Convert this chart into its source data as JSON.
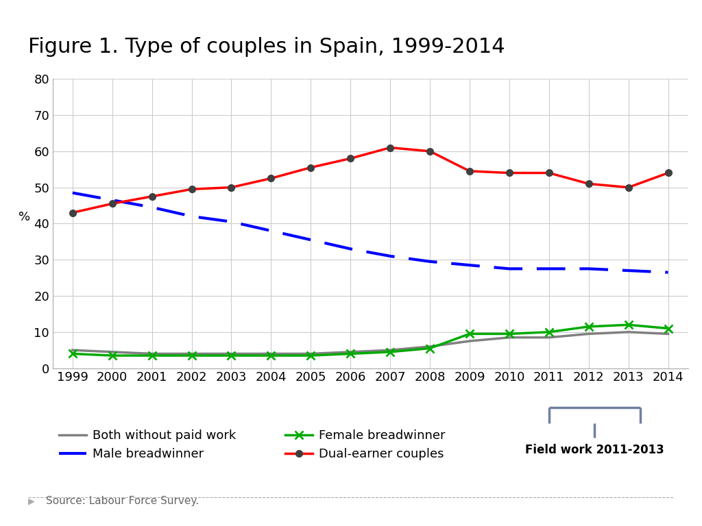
{
  "title": "Figure 1. Type of couples in Spain, 1999-2014",
  "years": [
    1999,
    2000,
    2001,
    2002,
    2003,
    2004,
    2005,
    2006,
    2007,
    2008,
    2009,
    2010,
    2011,
    2012,
    2013,
    2014
  ],
  "dual_earner": [
    43,
    45.5,
    47.5,
    49.5,
    50,
    52.5,
    55.5,
    58,
    61,
    60,
    54.5,
    54,
    54,
    51,
    50,
    54
  ],
  "male_breadwinner": [
    48.5,
    46.5,
    44.5,
    42,
    40.5,
    38,
    35.5,
    33,
    31,
    29.5,
    28.5,
    27.5,
    27.5,
    27.5,
    27,
    26.5
  ],
  "both_without": [
    5,
    4.5,
    4,
    4,
    4,
    4,
    4,
    4.5,
    5,
    6,
    7.5,
    8.5,
    8.5,
    9.5,
    10,
    9.5
  ],
  "female_breadwinner": [
    4,
    3.5,
    3.5,
    3.5,
    3.5,
    3.5,
    3.5,
    4,
    4.5,
    5.5,
    9.5,
    9.5,
    10,
    11.5,
    12,
    11
  ],
  "dual_earner_color": "#ff0000",
  "male_breadwinner_color": "#0000ff",
  "both_without_color": "#808080",
  "female_breadwinner_color": "#00aa00",
  "ylabel": "%",
  "ylim": [
    0,
    80
  ],
  "yticks": [
    0,
    10,
    20,
    30,
    40,
    50,
    60,
    70,
    80
  ],
  "background_color": "#ffffff",
  "grid_color": "#cccccc",
  "source_text": "Source: Labour Force Survey.",
  "fieldwork_text": "Field work 2011-2013",
  "title_fontsize": 22,
  "axis_fontsize": 13,
  "legend_fontsize": 13,
  "bracket_color": "#7080a0"
}
